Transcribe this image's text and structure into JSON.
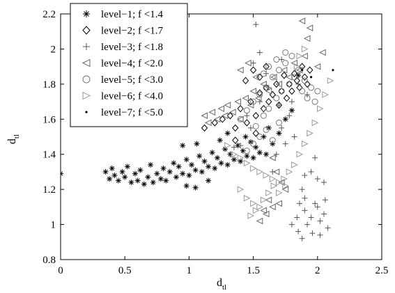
{
  "chart_data": {
    "type": "scatter",
    "xlabel": "d",
    "xlabel_sub": "tl",
    "ylabel": "d",
    "ylabel_sub": "tl",
    "xlim": [
      0,
      2.5
    ],
    "ylim": [
      0.8,
      2.2
    ],
    "xticks": [
      "0",
      "0.5",
      "1",
      "1.5",
      "2",
      "2.5"
    ],
    "yticks": [
      "0.8",
      "1",
      "1.2",
      "1.4",
      "1.6",
      "1.8",
      "2",
      "2.2"
    ],
    "grid": false,
    "legend_position": "top-left",
    "series": [
      {
        "name": "level−1; f <1.4",
        "marker": "asterisk",
        "color": "#000000",
        "points": [
          [
            0.0,
            1.29
          ],
          [
            0.35,
            1.3
          ],
          [
            0.38,
            1.26
          ],
          [
            0.4,
            1.32
          ],
          [
            0.42,
            1.28
          ],
          [
            0.45,
            1.25
          ],
          [
            0.48,
            1.3
          ],
          [
            0.5,
            1.27
          ],
          [
            0.52,
            1.33
          ],
          [
            0.55,
            1.24
          ],
          [
            0.58,
            1.29
          ],
          [
            0.6,
            1.25
          ],
          [
            0.62,
            1.31
          ],
          [
            0.65,
            1.23
          ],
          [
            0.68,
            1.27
          ],
          [
            0.7,
            1.34
          ],
          [
            0.72,
            1.24
          ],
          [
            0.75,
            1.29
          ],
          [
            0.78,
            1.26
          ],
          [
            0.8,
            1.32
          ],
          [
            0.82,
            1.25
          ],
          [
            0.85,
            1.3
          ],
          [
            0.88,
            1.35
          ],
          [
            0.9,
            1.27
          ],
          [
            0.92,
            1.33
          ],
          [
            0.95,
            1.29
          ],
          [
            0.98,
            1.37
          ],
          [
            1.0,
            1.28
          ],
          [
            1.02,
            1.34
          ],
          [
            1.05,
            1.31
          ],
          [
            1.08,
            1.39
          ],
          [
            1.1,
            1.3
          ],
          [
            1.12,
            1.36
          ],
          [
            1.15,
            1.33
          ],
          [
            1.18,
            1.41
          ],
          [
            1.2,
            1.32
          ],
          [
            1.22,
            1.38
          ],
          [
            1.25,
            1.35
          ],
          [
            1.28,
            1.43
          ],
          [
            1.3,
            1.34
          ],
          [
            1.32,
            1.4
          ],
          [
            1.35,
            1.37
          ],
          [
            1.38,
            1.45
          ],
          [
            1.4,
            1.36
          ],
          [
            1.42,
            1.42
          ],
          [
            1.45,
            1.39
          ],
          [
            1.48,
            1.47
          ],
          [
            1.5,
            1.38
          ],
          [
            1.52,
            1.44
          ],
          [
            1.55,
            1.41
          ],
          [
            1.58,
            1.5
          ],
          [
            1.6,
            1.4
          ],
          [
            1.62,
            1.55
          ],
          [
            1.65,
            1.46
          ],
          [
            1.7,
            1.52
          ],
          [
            1.75,
            1.6
          ],
          [
            1.8,
            1.65
          ],
          [
            1.85,
            1.85
          ],
          [
            0.95,
            1.45
          ],
          [
            1.06,
            1.46
          ],
          [
            1.24,
            1.48
          ],
          [
            1.3,
            1.52
          ],
          [
            0.98,
            1.22
          ],
          [
            1.05,
            1.21
          ],
          [
            1.15,
            1.25
          ],
          [
            1.44,
            1.5
          ]
        ]
      },
      {
        "name": "level−2; f <1.7",
        "marker": "diamond",
        "color": "#000000",
        "points": [
          [
            1.12,
            1.55
          ],
          [
            1.2,
            1.58
          ],
          [
            1.26,
            1.6
          ],
          [
            1.32,
            1.62
          ],
          [
            1.36,
            1.55
          ],
          [
            1.4,
            1.66
          ],
          [
            1.45,
            1.58
          ],
          [
            1.48,
            1.7
          ],
          [
            1.52,
            1.62
          ],
          [
            1.55,
            1.75
          ],
          [
            1.58,
            1.66
          ],
          [
            1.6,
            1.78
          ],
          [
            1.62,
            1.7
          ],
          [
            1.65,
            1.74
          ],
          [
            1.68,
            1.8
          ],
          [
            1.7,
            1.68
          ],
          [
            1.72,
            1.76
          ],
          [
            1.74,
            1.85
          ],
          [
            1.76,
            1.72
          ],
          [
            1.78,
            1.8
          ],
          [
            1.8,
            1.76
          ],
          [
            1.82,
            1.86
          ],
          [
            1.84,
            1.82
          ],
          [
            1.86,
            1.78
          ],
          [
            1.88,
            1.9
          ],
          [
            1.9,
            1.84
          ],
          [
            1.92,
            1.8
          ],
          [
            1.94,
            1.88
          ],
          [
            1.44,
            1.82
          ],
          [
            1.5,
            1.88
          ],
          [
            1.55,
            1.84
          ],
          [
            1.6,
            1.9
          ],
          [
            1.36,
            1.48
          ],
          [
            1.52,
            1.52
          ]
        ]
      },
      {
        "name": "level−3; f <1.8",
        "marker": "plus",
        "color": "#555555",
        "points": [
          [
            1.4,
            1.45
          ],
          [
            1.48,
            1.55
          ],
          [
            1.5,
            1.92
          ],
          [
            1.52,
            2.14
          ],
          [
            1.55,
            1.98
          ],
          [
            1.6,
            1.86
          ],
          [
            1.62,
            1.78
          ],
          [
            1.65,
            1.3
          ],
          [
            1.68,
            1.4
          ],
          [
            1.7,
            1.68
          ],
          [
            1.72,
            1.55
          ],
          [
            1.75,
            1.46
          ],
          [
            1.78,
            1.62
          ],
          [
            1.8,
            1.7
          ],
          [
            1.82,
            1.5
          ],
          [
            1.85,
            1.8
          ],
          [
            1.88,
            1.2
          ],
          [
            1.9,
            1.28
          ],
          [
            1.92,
            1.74
          ],
          [
            1.95,
            1.3
          ],
          [
            1.98,
            1.38
          ],
          [
            2.0,
            1.26
          ],
          [
            2.05,
            1.24
          ],
          [
            1.86,
            1.12
          ],
          [
            1.9,
            1.08
          ],
          [
            1.95,
            1.04
          ],
          [
            2.0,
            1.1
          ],
          [
            2.05,
            1.06
          ],
          [
            2.08,
            0.98
          ],
          [
            1.85,
            0.96
          ],
          [
            1.88,
            0.92
          ],
          [
            1.92,
            1.0
          ],
          [
            1.96,
            0.95
          ],
          [
            2.02,
            1.02
          ],
          [
            1.8,
            1.0
          ],
          [
            1.84,
            1.04
          ],
          [
            1.9,
            1.15
          ],
          [
            1.98,
            1.12
          ],
          [
            2.02,
            0.94
          ],
          [
            2.06,
            1.14
          ],
          [
            1.35,
            1.44
          ],
          [
            1.45,
            1.62
          ],
          [
            1.55,
            1.7
          ],
          [
            1.72,
            1.94
          ]
        ]
      },
      {
        "name": "level−4; f <2.0",
        "marker": "triangle-left",
        "color": "#666666",
        "points": [
          [
            1.12,
            1.62
          ],
          [
            1.15,
            1.58
          ],
          [
            1.18,
            1.64
          ],
          [
            1.22,
            1.6
          ],
          [
            1.25,
            1.66
          ],
          [
            1.28,
            1.62
          ],
          [
            1.3,
            1.68
          ],
          [
            1.34,
            1.64
          ],
          [
            1.38,
            1.7
          ],
          [
            1.4,
            1.6
          ],
          [
            1.44,
            1.72
          ],
          [
            1.48,
            1.68
          ],
          [
            1.5,
            1.76
          ],
          [
            1.54,
            1.72
          ],
          [
            1.58,
            1.8
          ],
          [
            1.62,
            1.76
          ],
          [
            1.66,
            1.84
          ],
          [
            1.7,
            1.8
          ],
          [
            1.74,
            1.88
          ],
          [
            1.78,
            1.84
          ],
          [
            1.82,
            1.92
          ],
          [
            1.86,
            1.88
          ],
          [
            1.9,
            1.96
          ],
          [
            1.94,
            2.12
          ],
          [
            1.88,
            2.16
          ],
          [
            1.92,
            2.06
          ],
          [
            2.0,
            1.9
          ],
          [
            2.04,
            1.98
          ],
          [
            1.4,
            1.88
          ],
          [
            1.46,
            1.92
          ],
          [
            1.52,
            1.84
          ],
          [
            1.65,
            1.38
          ],
          [
            1.68,
            1.3
          ],
          [
            1.72,
            1.24
          ],
          [
            1.75,
            1.2
          ],
          [
            1.7,
            1.12
          ],
          [
            1.65,
            1.1
          ],
          [
            1.6,
            1.06
          ],
          [
            1.55,
            1.02
          ],
          [
            1.58,
            1.08
          ],
          [
            1.62,
            1.14
          ]
        ]
      },
      {
        "name": "level−5; f <3.0",
        "marker": "circle",
        "color": "#777777",
        "points": [
          [
            1.4,
            1.6
          ],
          [
            1.45,
            1.65
          ],
          [
            1.5,
            1.7
          ],
          [
            1.52,
            1.56
          ],
          [
            1.55,
            1.74
          ],
          [
            1.58,
            1.62
          ],
          [
            1.6,
            1.78
          ],
          [
            1.62,
            1.66
          ],
          [
            1.65,
            1.84
          ],
          [
            1.68,
            1.72
          ],
          [
            1.7,
            1.88
          ],
          [
            1.72,
            1.76
          ],
          [
            1.75,
            1.92
          ],
          [
            1.78,
            1.8
          ],
          [
            1.8,
            1.96
          ],
          [
            1.82,
            1.84
          ],
          [
            1.85,
            1.88
          ],
          [
            1.88,
            1.76
          ],
          [
            1.9,
            1.82
          ],
          [
            1.92,
            1.72
          ],
          [
            1.95,
            1.78
          ],
          [
            1.98,
            1.7
          ],
          [
            2.0,
            1.76
          ],
          [
            1.62,
            1.9
          ],
          [
            1.58,
            1.86
          ],
          [
            1.68,
            1.94
          ],
          [
            1.75,
            1.98
          ],
          [
            1.55,
            1.5
          ],
          [
            1.6,
            1.54
          ],
          [
            1.5,
            1.46
          ],
          [
            1.45,
            1.42
          ],
          [
            1.65,
            1.48
          ],
          [
            1.7,
            1.58
          ]
        ]
      },
      {
        "name": "level−6; f <4.0",
        "marker": "triangle-right",
        "color": "#999999",
        "points": [
          [
            1.3,
            1.45
          ],
          [
            1.35,
            1.4
          ],
          [
            1.4,
            1.38
          ],
          [
            1.45,
            1.35
          ],
          [
            1.5,
            1.32
          ],
          [
            1.55,
            1.3
          ],
          [
            1.6,
            1.28
          ],
          [
            1.65,
            1.26
          ],
          [
            1.7,
            1.24
          ],
          [
            1.75,
            1.22
          ],
          [
            1.4,
            1.2
          ],
          [
            1.45,
            1.15
          ],
          [
            1.5,
            1.12
          ],
          [
            1.55,
            1.1
          ],
          [
            1.48,
            1.05
          ],
          [
            1.52,
            1.08
          ],
          [
            1.58,
            1.14
          ],
          [
            1.62,
            1.18
          ],
          [
            1.66,
            1.22
          ],
          [
            1.7,
            1.18
          ],
          [
            1.74,
            1.26
          ],
          [
            1.78,
            1.3
          ],
          [
            1.82,
            1.34
          ],
          [
            1.86,
            1.4
          ],
          [
            1.9,
            1.46
          ],
          [
            1.94,
            1.52
          ],
          [
            1.98,
            1.58
          ],
          [
            2.02,
            1.66
          ],
          [
            2.06,
            1.74
          ],
          [
            2.1,
            1.82
          ],
          [
            1.86,
            1.96
          ],
          [
            1.9,
            2.0
          ],
          [
            1.84,
            1.9
          ]
        ]
      },
      {
        "name": "level−7; f <5.0",
        "marker": "dot",
        "color": "#000000",
        "points": [
          [
            1.88,
            1.88
          ],
          [
            2.12,
            1.88
          ],
          [
            1.95,
            1.84
          ]
        ]
      }
    ]
  }
}
